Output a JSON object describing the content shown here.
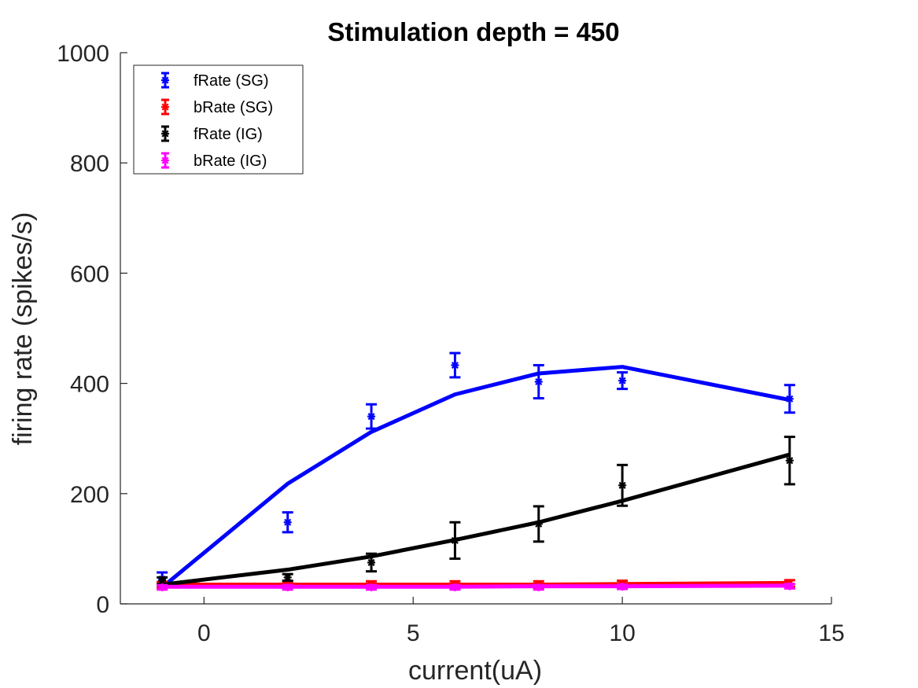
{
  "chart_data": {
    "type": "line",
    "title": "Stimulation depth = 450",
    "xlabel": "current(uA)",
    "ylabel": "firing rate (spikes/s)",
    "xlim": [
      -2,
      15
    ],
    "ylim": [
      0,
      1000
    ],
    "x_ticks": [
      0,
      5,
      10,
      15
    ],
    "y_ticks": [
      0,
      200,
      400,
      600,
      800,
      1000
    ],
    "x_tick_labels": [
      "0",
      "5",
      "10",
      "15"
    ],
    "y_tick_labels": [
      "0",
      "200",
      "400",
      "600",
      "800",
      "1000"
    ],
    "grid": false,
    "legend_position": "top-left",
    "x": [
      -1,
      2,
      4,
      6,
      8,
      10,
      14
    ],
    "series": [
      {
        "name": "fRate (SG)",
        "color": "#0000ff",
        "marker": "asterisk",
        "points": [
          45,
          148,
          340,
          433,
          403,
          405,
          372
        ],
        "errors": [
          12,
          18,
          22,
          22,
          30,
          15,
          25
        ],
        "fit": [
          30,
          218,
          312,
          380,
          418,
          430,
          370
        ]
      },
      {
        "name": "bRate (SG)",
        "color": "#ff0000",
        "marker": "asterisk",
        "points": [
          35,
          35,
          35,
          35,
          35,
          36,
          37
        ],
        "errors": [
          5,
          5,
          6,
          6,
          6,
          6,
          6
        ],
        "fit": [
          35,
          35,
          35,
          35,
          35,
          36,
          38
        ]
      },
      {
        "name": "fRate (IG)",
        "color": "#000000",
        "marker": "asterisk",
        "points": [
          42,
          48,
          75,
          115,
          145,
          215,
          260
        ],
        "errors": [
          6,
          6,
          16,
          33,
          32,
          37,
          43
        ],
        "fit": [
          35,
          62,
          86,
          116,
          148,
          187,
          271
        ]
      },
      {
        "name": "bRate (IG)",
        "color": "#ff00ff",
        "marker": "asterisk",
        "points": [
          30,
          30,
          30,
          30,
          30,
          31,
          32
        ],
        "errors": [
          4,
          4,
          4,
          4,
          4,
          4,
          4
        ],
        "fit": [
          31,
          31,
          31,
          31,
          32,
          32,
          33
        ]
      }
    ]
  }
}
